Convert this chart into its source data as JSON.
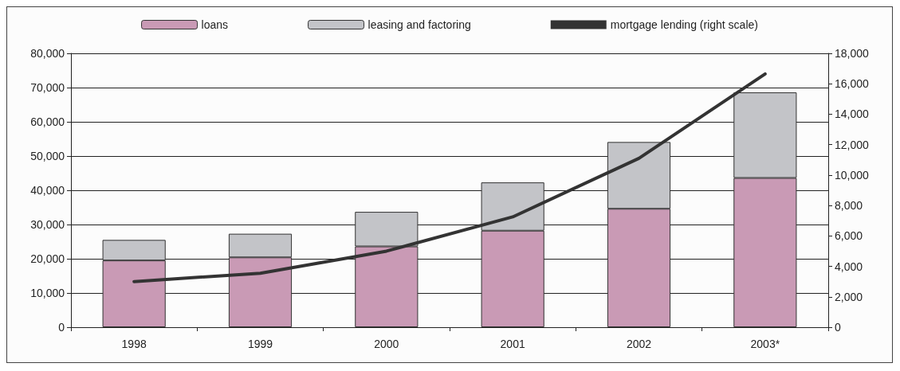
{
  "chart_data": {
    "type": "bar",
    "stacked": true,
    "categories": [
      "1998",
      "1999",
      "2000",
      "2001",
      "2002",
      "2003*"
    ],
    "series": [
      {
        "name": "loans",
        "color": "#c99ab5",
        "values": [
          19500,
          20400,
          23600,
          28200,
          34600,
          43600
        ]
      },
      {
        "name": "leasing and factoring",
        "color": "#c3c4c8",
        "values": [
          6000,
          6900,
          10100,
          14100,
          19500,
          25000
        ]
      },
      {
        "name": "mortgage lending (right scale)",
        "type": "line",
        "axis": "y2",
        "color": "#333333",
        "values": [
          3000,
          3550,
          5000,
          7250,
          11100,
          16650
        ]
      }
    ],
    "ylim": [
      0,
      80000
    ],
    "yticks": [
      0,
      {
        "value": 10000,
        "label": "10,000"
      },
      {
        "value": 20000,
        "label": "20,000"
      },
      {
        "value": 30000,
        "label": "30,000"
      },
      {
        "value": 40000,
        "label": "40,000"
      },
      {
        "value": 50000,
        "label": "50,000"
      },
      {
        "value": 60000,
        "label": "60,000"
      },
      {
        "value": 70000,
        "label": "70,000"
      },
      {
        "value": 80000,
        "label": "80,000"
      }
    ],
    "y2lim": [
      0,
      18000
    ],
    "y2ticks": [
      0,
      {
        "value": 2000,
        "label": "2,000"
      },
      {
        "value": 4000,
        "label": "4,000"
      },
      {
        "value": 6000,
        "label": "6,000"
      },
      {
        "value": 8000,
        "label": "8,000"
      },
      {
        "value": 10000,
        "label": "10,000"
      },
      {
        "value": 12000,
        "label": "12,000"
      },
      {
        "value": 14000,
        "label": "14,000"
      },
      {
        "value": 16000,
        "label": "16,000"
      },
      {
        "value": 18000,
        "label": "18,000"
      }
    ],
    "grid": "y",
    "legend": "top",
    "marker": "none",
    "line_style": "solid"
  }
}
